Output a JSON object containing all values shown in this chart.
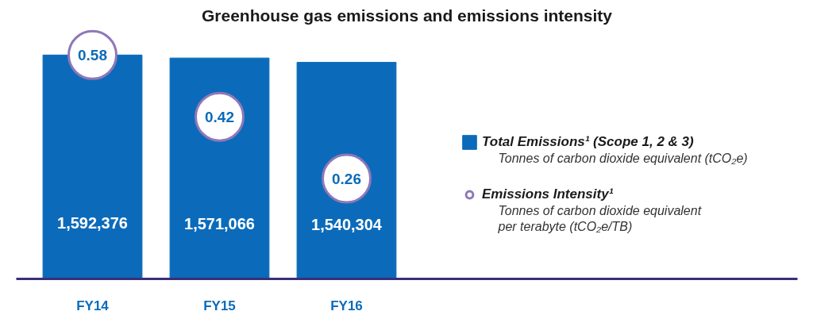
{
  "chart_data": {
    "type": "bar",
    "title": "Greenhouse gas emissions and emissions intensity",
    "categories": [
      "FY14",
      "FY15",
      "FY16"
    ],
    "series": [
      {
        "name": "Total Emissions¹ (Scope 1, 2 & 3)",
        "color": "#0b6bba",
        "values": [
          1592376,
          1571066,
          1540304
        ],
        "value_labels": [
          "1,592,376",
          "1,571,066",
          "1,540,304"
        ]
      },
      {
        "name": "Emissions Intensity¹",
        "type": "scatter",
        "axis": "y2",
        "color": "#8e78b8",
        "values": [
          0.58,
          0.42,
          0.26
        ],
        "value_labels": [
          "0.58",
          "0.42",
          "0.26"
        ]
      }
    ],
    "tick_labels": "x",
    "grid": false,
    "legend": "right",
    "marker": "circle",
    "annotations": [
      "Tonnes of carbon dioxide equivalent (tCO₂e)",
      "Tonnes of carbon dioxide equivalent per terabyte (tCO₂e/TB)"
    ]
  }
}
